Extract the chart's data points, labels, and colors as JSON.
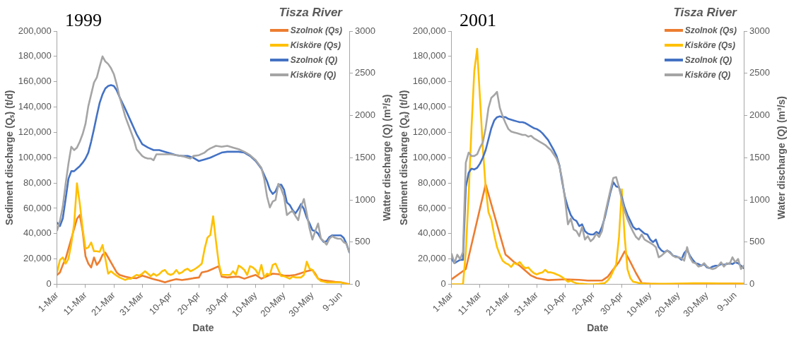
{
  "chart_data": [
    {
      "type": "line",
      "title": "1999",
      "legend_title": "Tisza River",
      "xlabel": "Date",
      "ylabel": "Sediment discharge (Qₛ) (t/d)",
      "y2label": "Watter discharge (Q) (m³/s)",
      "legend": "top right",
      "grid": false,
      "xlim": [
        "--03-01",
        "--06-12"
      ],
      "xticks": [
        {
          "value": "--03-01",
          "label": "1-Mar"
        },
        {
          "value": "--03-11",
          "label": "11-Mar"
        },
        {
          "value": "--03-21",
          "label": "21-Mar"
        },
        {
          "value": "--03-31",
          "label": "31-Mar"
        },
        {
          "value": "--04-10",
          "label": "10-Apr"
        },
        {
          "value": "--04-20",
          "label": "20-Apr"
        },
        {
          "value": "--04-30",
          "label": "30-Apr"
        },
        {
          "value": "--05-10",
          "label": "10-May"
        },
        {
          "value": "--05-20",
          "label": "20-May"
        },
        {
          "value": "--05-30",
          "label": "30-May"
        },
        {
          "value": "--06-09",
          "label": "9-Jun"
        }
      ],
      "ylim": [
        0,
        200000
      ],
      "yticks": [
        0,
        {
          "value": 20000,
          "label": "20,000"
        },
        {
          "value": 40000,
          "label": "40,000"
        },
        {
          "value": 60000,
          "label": "60,000"
        },
        {
          "value": 80000,
          "label": "80,000"
        },
        {
          "value": 100000,
          "label": "100,000"
        },
        {
          "value": 120000,
          "label": "120,000"
        },
        {
          "value": 140000,
          "label": "140,000"
        },
        {
          "value": 160000,
          "label": "160,000"
        },
        {
          "value": 180000,
          "label": "180,000"
        },
        {
          "value": 200000,
          "label": "200,000"
        }
      ],
      "y2lim": [
        0,
        3000
      ],
      "y2ticks": [
        0,
        500,
        1000,
        1500,
        2000,
        2500,
        3000
      ],
      "x": [
        "--03-01",
        "--03-02",
        "--03-03",
        "--03-04",
        "--03-05",
        "--03-06",
        "--03-07",
        "--03-08",
        "--03-09",
        "--03-10",
        "--03-11",
        "--03-12",
        "--03-13",
        "--03-14",
        "--03-15",
        "--03-16",
        "--03-17",
        "--03-18",
        "--03-19",
        "--03-20",
        "--03-21",
        "--03-22",
        "--03-23",
        "--03-24",
        "--03-25",
        "--03-26",
        "--03-27",
        "--03-28",
        "--03-29",
        "--03-30",
        "--03-31",
        "--04-01",
        "--04-02",
        "--04-03",
        "--04-04",
        "--04-05",
        "--04-06",
        "--04-07",
        "--04-08",
        "--04-09",
        "--04-10",
        "--04-11",
        "--04-12",
        "--04-13",
        "--04-14",
        "--04-15",
        "--04-16",
        "--04-17",
        "--04-18",
        "--04-19",
        "--04-20",
        "--04-21",
        "--04-22",
        "--04-23",
        "--04-24",
        "--04-25",
        "--04-26",
        "--04-27",
        "--04-28",
        "--04-29",
        "--04-30",
        "--05-01",
        "--05-02",
        "--05-03",
        "--05-04",
        "--05-05",
        "--05-06",
        "--05-07",
        "--05-08",
        "--05-09",
        "--05-10",
        "--05-11",
        "--05-12",
        "--05-13",
        "--05-14",
        "--05-15",
        "--05-16",
        "--05-17",
        "--05-18",
        "--05-19",
        "--05-20",
        "--05-21",
        "--05-22",
        "--05-23",
        "--05-24",
        "--05-25",
        "--05-26",
        "--05-27",
        "--05-28",
        "--05-29",
        "--05-30",
        "--05-31",
        "--06-01",
        "--06-02",
        "--06-03",
        "--06-04",
        "--06-05",
        "--06-06",
        "--06-07",
        "--06-08",
        "--06-09",
        "--06-10",
        "--06-11",
        "--06-12"
      ],
      "series": [
        {
          "name": "Szolnok (Qs)",
          "color": "#ed7d31",
          "x": [
            "--03-01",
            "--03-02",
            "--03-03",
            "--03-04",
            "--03-05",
            "--03-06",
            "--03-07",
            "--03-08",
            "--03-09",
            "--03-10",
            "--03-11",
            "--03-12",
            "--03-13",
            "--03-14",
            "--03-15",
            "--03-16",
            "--03-17",
            "--03-18",
            "--03-19",
            "--03-20",
            "--03-21",
            "--03-22",
            "--03-23",
            "--03-25",
            "--03-27",
            "--03-29",
            "--03-31",
            "--04-02",
            "--04-04",
            "--04-06",
            "--04-08",
            "--04-10",
            "--04-12",
            "--04-14",
            "--04-16",
            "--04-18",
            "--04-20",
            "--04-21",
            "--04-23",
            "--04-25",
            "--04-27",
            "--04-28",
            "--04-30",
            "--05-02",
            "--05-04",
            "--05-06",
            "--05-08",
            "--05-10",
            "--05-12",
            "--05-14",
            "--05-16",
            "--05-18",
            "--05-20",
            "--05-22",
            "--05-24",
            "--05-26",
            "--05-28",
            "--05-30",
            "--05-31",
            "--06-01",
            "--06-03",
            "--06-05",
            "--06-07",
            "--06-09",
            "--06-11",
            "--06-12"
          ],
          "values": [
            7400,
            9400,
            15300,
            20200,
            28100,
            36000,
            43800,
            51700,
            54700,
            41900,
            22200,
            16300,
            13300,
            21200,
            15300,
            18200,
            23200,
            25100,
            21200,
            17200,
            13300,
            9400,
            7400,
            6000,
            5000,
            4800,
            6800,
            5400,
            4000,
            2900,
            1500,
            2900,
            4000,
            3400,
            4000,
            4800,
            5400,
            9400,
            10300,
            12300,
            14300,
            6000,
            5400,
            5800,
            6000,
            4400,
            6000,
            7400,
            4400,
            6400,
            8400,
            8000,
            6800,
            6800,
            7400,
            8800,
            10300,
            11300,
            8400,
            4400,
            3000,
            2500,
            1900,
            1500,
            500,
            100
          ]
        },
        {
          "name": "Kisköre (Qs)",
          "color": "#ffc000",
          "values": [
            9400,
            19200,
            21200,
            16300,
            20200,
            32000,
            47800,
            79700,
            63500,
            43800,
            28100,
            29100,
            33000,
            26100,
            26100,
            25700,
            31000,
            20200,
            8400,
            10300,
            8400,
            6800,
            5400,
            4400,
            3400,
            4400,
            4400,
            6000,
            7400,
            6800,
            8400,
            10300,
            8400,
            6400,
            8400,
            6800,
            8000,
            10300,
            11300,
            8400,
            7400,
            8400,
            11300,
            8400,
            9400,
            11300,
            12300,
            10300,
            11300,
            12700,
            14300,
            16300,
            28100,
            36900,
            38900,
            53700,
            34000,
            16300,
            7400,
            7400,
            7400,
            7400,
            10300,
            7400,
            14700,
            13300,
            11300,
            7400,
            14300,
            13300,
            11300,
            7400,
            15300,
            5400,
            8400,
            7400,
            15300,
            16300,
            11300,
            6400,
            6400,
            5400,
            4400,
            6000,
            5400,
            5400,
            5400,
            7400,
            17800,
            12300,
            11300,
            7400,
            4400,
            2500,
            2100,
            1500,
            1500,
            1500,
            1500,
            1500,
            1500,
            900,
            100,
            100
          ]
        },
        {
          "name": "Szolnok (Q)",
          "color": "#4472c4",
          "axis": "y2",
          "x": [
            "--03-01",
            "--03-02",
            "--03-03",
            "--03-04",
            "--03-05",
            "--03-06",
            "--03-07",
            "--03-08",
            "--03-09",
            "--03-10",
            "--03-11",
            "--03-12",
            "--03-13",
            "--03-14",
            "--03-15",
            "--03-16",
            "--03-17",
            "--03-18",
            "--03-19",
            "--03-20",
            "--03-21",
            "--03-22",
            "--03-23",
            "--03-25",
            "--03-27",
            "--03-29",
            "--03-31",
            "--04-02",
            "--04-04",
            "--04-06",
            "--04-08",
            "--04-10",
            "--04-12",
            "--04-14",
            "--04-16",
            "--04-18",
            "--04-20",
            "--04-22",
            "--04-24",
            "--04-26",
            "--04-28",
            "--04-30",
            "--05-02",
            "--05-04",
            "--05-06",
            "--05-08",
            "--05-10",
            "--05-12",
            "--05-14",
            "--05-15",
            "--05-16",
            "--05-17",
            "--05-18",
            "--05-19",
            "--05-20",
            "--05-21",
            "--05-22",
            "--05-23",
            "--05-24",
            "--05-25",
            "--05-26",
            "--05-27",
            "--05-28",
            "--05-29",
            "--05-30",
            "--05-31",
            "--06-01",
            "--06-02",
            "--06-03",
            "--06-04",
            "--06-05",
            "--06-06",
            "--06-07",
            "--06-08",
            "--06-09",
            "--06-10",
            "--06-11",
            "--06-12"
          ],
          "values": [
            730,
            690,
            780,
            1010,
            1250,
            1340,
            1340,
            1370,
            1400,
            1440,
            1490,
            1560,
            1690,
            1840,
            2000,
            2150,
            2250,
            2320,
            2350,
            2360,
            2350,
            2300,
            2220,
            2080,
            1930,
            1780,
            1660,
            1620,
            1590,
            1590,
            1570,
            1550,
            1530,
            1520,
            1520,
            1500,
            1460,
            1480,
            1500,
            1530,
            1560,
            1570,
            1570,
            1570,
            1560,
            1520,
            1460,
            1370,
            1220,
            1120,
            1070,
            1100,
            1180,
            1180,
            1120,
            970,
            940,
            880,
            840,
            890,
            950,
            890,
            790,
            720,
            640,
            630,
            600,
            540,
            500,
            510,
            560,
            580,
            580,
            580,
            580,
            550,
            480,
            380
          ]
        },
        {
          "name": "Kisköre (Q)",
          "color": "#a5a5a5",
          "axis": "y2",
          "x": [
            "--03-01",
            "--03-02",
            "--03-03",
            "--03-04",
            "--03-05",
            "--03-06",
            "--03-07",
            "--03-08",
            "--03-09",
            "--03-10",
            "--03-11",
            "--03-12",
            "--03-13",
            "--03-14",
            "--03-15",
            "--03-16",
            "--03-17",
            "--03-18",
            "--03-19",
            "--03-20",
            "--03-21",
            "--03-22",
            "--03-23",
            "--03-24",
            "--03-25",
            "--03-26",
            "--03-27",
            "--03-28",
            "--03-29",
            "--03-30",
            "--03-31",
            "--04-01",
            "--04-02",
            "--04-03",
            "--04-04",
            "--04-05",
            "--04-06",
            "--04-08",
            "--04-10",
            "--04-12",
            "--04-14",
            "--04-16",
            "--04-17",
            "--04-18",
            "--04-20",
            "--04-22",
            "--04-23",
            "--04-24",
            "--04-26",
            "--04-28",
            "--04-30",
            "--05-02",
            "--05-04",
            "--05-06",
            "--05-08",
            "--05-10",
            "--05-12",
            "--05-13",
            "--05-14",
            "--05-15",
            "--05-16",
            "--05-17",
            "--05-18",
            "--05-19",
            "--05-20",
            "--05-21",
            "--05-22",
            "--05-23",
            "--05-24",
            "--05-25",
            "--05-26",
            "--05-27",
            "--05-28",
            "--05-29",
            "--05-30",
            "--05-31",
            "--06-01",
            "--06-02",
            "--06-03",
            "--06-04",
            "--06-05",
            "--06-06",
            "--06-07",
            "--06-08",
            "--06-09",
            "--06-10",
            "--06-11",
            "--06-12"
          ],
          "values": [
            640,
            750,
            920,
            1190,
            1430,
            1630,
            1590,
            1620,
            1690,
            1780,
            1900,
            2110,
            2250,
            2390,
            2450,
            2580,
            2700,
            2640,
            2610,
            2560,
            2490,
            2370,
            2220,
            2110,
            1990,
            1900,
            1810,
            1720,
            1600,
            1560,
            1520,
            1500,
            1490,
            1490,
            1470,
            1540,
            1540,
            1540,
            1540,
            1530,
            1520,
            1500,
            1490,
            1520,
            1530,
            1560,
            1590,
            1610,
            1640,
            1630,
            1640,
            1620,
            1600,
            1570,
            1530,
            1470,
            1380,
            1250,
            1040,
            910,
            980,
            1000,
            1190,
            1130,
            1040,
            820,
            850,
            870,
            810,
            760,
            920,
            1010,
            840,
            660,
            530,
            630,
            720,
            540,
            510,
            470,
            540,
            570,
            550,
            540,
            540,
            500,
            480,
            380
          ]
        }
      ]
    },
    {
      "type": "line",
      "title": "2001",
      "legend_title": "Tisza River",
      "xlabel": "Date",
      "ylabel": "Sediment discharge (Qₛ) (t/d)",
      "y2label": "Water discharge (Q) (m³/s)",
      "legend": "top right",
      "grid": false,
      "xlim": [
        "--03-01",
        "--06-12"
      ],
      "xticks": [
        {
          "value": "--03-01",
          "label": "1-Mar"
        },
        {
          "value": "--03-11",
          "label": "11-Mar"
        },
        {
          "value": "--03-21",
          "label": "21-Mar"
        },
        {
          "value": "--03-31",
          "label": "31-Mar"
        },
        {
          "value": "--04-10",
          "label": "10-Apr"
        },
        {
          "value": "--04-20",
          "label": "20-Apr"
        },
        {
          "value": "--04-30",
          "label": "30-Apr"
        },
        {
          "value": "--05-10",
          "label": "10-May"
        },
        {
          "value": "--05-20",
          "label": "20-May"
        },
        {
          "value": "--05-30",
          "label": "30-May"
        },
        {
          "value": "--06-09",
          "label": "9-Jun"
        }
      ],
      "ylim": [
        0,
        200000
      ],
      "yticks": [
        0,
        {
          "value": 20000,
          "label": "20,000"
        },
        {
          "value": 40000,
          "label": "40,000"
        },
        {
          "value": 60000,
          "label": "60,000"
        },
        {
          "value": 80000,
          "label": "80,000"
        },
        {
          "value": 100000,
          "label": "100,000"
        },
        {
          "value": 120000,
          "label": "120,000"
        },
        {
          "value": 140000,
          "label": "140,000"
        },
        {
          "value": 160000,
          "label": "160,000"
        },
        {
          "value": 180000,
          "label": "180,000"
        },
        {
          "value": 200000,
          "label": "200,000"
        }
      ],
      "y2lim": [
        0,
        3000
      ],
      "y2ticks": [
        0,
        500,
        1000,
        1500,
        2000,
        2500,
        3000
      ],
      "x": [
        "--03-01",
        "--03-02",
        "--03-03",
        "--03-04",
        "--03-05",
        "--03-06",
        "--03-07",
        "--03-08",
        "--03-09",
        "--03-10",
        "--03-11",
        "--03-12",
        "--03-13",
        "--03-14",
        "--03-15",
        "--03-16",
        "--03-17",
        "--03-18",
        "--03-19",
        "--03-20",
        "--03-21",
        "--03-22",
        "--03-23",
        "--03-24",
        "--03-25",
        "--03-26",
        "--03-27",
        "--03-28",
        "--03-29",
        "--03-30",
        "--03-31",
        "--04-01",
        "--04-02",
        "--04-03",
        "--04-04",
        "--04-05",
        "--04-06",
        "--04-07",
        "--04-08",
        "--04-09",
        "--04-10",
        "--04-11",
        "--04-12",
        "--04-13",
        "--04-14",
        "--04-15",
        "--04-16",
        "--04-17",
        "--04-18",
        "--04-19",
        "--04-20",
        "--04-21",
        "--04-22",
        "--04-23",
        "--04-24",
        "--04-25",
        "--04-26",
        "--04-27",
        "--04-28",
        "--04-29",
        "--04-30",
        "--05-01",
        "--05-02",
        "--05-03",
        "--05-04",
        "--05-05",
        "--05-06",
        "--05-07",
        "--05-08",
        "--05-09",
        "--05-10",
        "--05-11",
        "--05-12",
        "--05-13",
        "--05-14",
        "--05-15",
        "--05-16",
        "--05-17",
        "--05-18",
        "--05-19",
        "--05-20",
        "--05-21",
        "--05-22",
        "--05-23",
        "--05-24",
        "--05-25",
        "--05-26",
        "--05-27",
        "--05-28",
        "--05-29",
        "--05-30",
        "--05-31",
        "--06-01",
        "--06-02",
        "--06-03",
        "--06-04",
        "--06-05",
        "--06-06",
        "--06-07",
        "--06-08",
        "--06-09",
        "--06-10",
        "--06-11",
        "--06-12"
      ],
      "series": [
        {
          "name": "Szolnok (Qs)",
          "color": "#ed7d31",
          "x": [
            "--03-01",
            "--03-06",
            "--03-13",
            "--03-20",
            "--03-21",
            "--03-23",
            "--03-25",
            "--03-27",
            "--03-29",
            "--03-31",
            "--04-04",
            "--04-10",
            "--04-15",
            "--04-18",
            "--04-23",
            "--04-25",
            "--04-27",
            "--04-29",
            "--05-01",
            "--05-03",
            "--05-05",
            "--05-07",
            "--05-10",
            "--05-15",
            "--05-20",
            "--05-30",
            "--06-09",
            "--06-12"
          ],
          "values": [
            4000,
            12000,
            79000,
            23500,
            21600,
            17600,
            14700,
            10800,
            6900,
            4900,
            3300,
            3900,
            3500,
            2900,
            2900,
            5900,
            11800,
            17600,
            26000,
            17600,
            8800,
            1000,
            400,
            0,
            200,
            400,
            600,
            400
          ]
        },
        {
          "name": "Kisköre (Qs)",
          "color": "#ffc000",
          "x": [
            "--03-01",
            "--03-05",
            "--03-06",
            "--03-07",
            "--03-08",
            "--03-09",
            "--03-10",
            "--03-11",
            "--03-12",
            "--03-13",
            "--03-14",
            "--03-15",
            "--03-16",
            "--03-17",
            "--03-18",
            "--03-19",
            "--03-20",
            "--03-21",
            "--03-22",
            "--03-23",
            "--03-24",
            "--03-25",
            "--03-26",
            "--03-27",
            "--03-28",
            "--03-29",
            "--03-30",
            "--03-31",
            "--04-01",
            "--04-02",
            "--04-03",
            "--04-04",
            "--04-05",
            "--04-06",
            "--04-07",
            "--04-08",
            "--04-09",
            "--04-10",
            "--04-11",
            "--04-12",
            "--04-13",
            "--04-14",
            "--04-15",
            "--04-16",
            "--04-18",
            "--04-20",
            "--04-22",
            "--04-24",
            "--04-25",
            "--04-26",
            "--04-27",
            "--04-28",
            "--04-29",
            "--04-30",
            "--05-01",
            "--05-02",
            "--05-03",
            "--05-04",
            "--05-05",
            "--05-06",
            "--05-08",
            "--05-10",
            "--05-15",
            "--05-20",
            "--05-25",
            "--05-30",
            "--06-04",
            "--06-09",
            "--06-12"
          ],
          "values": [
            0,
            0,
            25500,
            70200,
            123200,
            168600,
            186000,
            147000,
            107900,
            76500,
            56900,
            51000,
            39200,
            29400,
            23500,
            18600,
            16700,
            15700,
            13700,
            16700,
            15700,
            17600,
            14700,
            12700,
            13300,
            10800,
            8800,
            7800,
            8800,
            9400,
            11400,
            9400,
            9400,
            8800,
            7800,
            6900,
            5500,
            3900,
            2000,
            2900,
            1600,
            800,
            400,
            400,
            0,
            0,
            400,
            1000,
            2900,
            5900,
            10800,
            15700,
            37300,
            75000,
            37300,
            11800,
            4900,
            2000,
            1600,
            1000,
            600,
            400,
            400,
            600,
            800,
            800,
            600,
            600,
            400
          ]
        },
        {
          "name": "Szolnok (Q)",
          "color": "#4472c4",
          "axis": "y2",
          "values": [
            300,
            250,
            270,
            290,
            290,
            1150,
            1320,
            1370,
            1360,
            1380,
            1430,
            1500,
            1590,
            1720,
            1850,
            1940,
            1980,
            1990,
            1980,
            1980,
            1960,
            1950,
            1940,
            1930,
            1920,
            1920,
            1910,
            1890,
            1870,
            1850,
            1840,
            1820,
            1790,
            1750,
            1710,
            1650,
            1590,
            1520,
            1410,
            1210,
            1030,
            910,
            820,
            770,
            750,
            690,
            710,
            630,
            600,
            590,
            590,
            620,
            600,
            680,
            790,
            940,
            1090,
            1210,
            1160,
            1150,
            1030,
            910,
            820,
            750,
            680,
            650,
            660,
            630,
            600,
            590,
            530,
            500,
            530,
            440,
            400,
            380,
            400,
            380,
            340,
            330,
            320,
            290,
            370,
            410,
            340,
            290,
            250,
            240,
            220,
            240,
            200,
            190,
            210,
            220,
            220,
            240,
            230,
            240,
            250,
            240,
            260,
            250,
            220,
            190
          ]
        },
        {
          "name": "Kisköre (Q)",
          "color": "#a5a5a5",
          "axis": "y2",
          "values": [
            360,
            250,
            350,
            300,
            380,
            1440,
            1560,
            1520,
            1520,
            1540,
            1620,
            1680,
            1850,
            2090,
            2210,
            2240,
            2280,
            2090,
            1990,
            1910,
            1840,
            1810,
            1800,
            1790,
            1780,
            1770,
            1770,
            1750,
            1760,
            1730,
            1710,
            1690,
            1670,
            1650,
            1620,
            1590,
            1540,
            1490,
            1400,
            1240,
            1000,
            710,
            780,
            650,
            630,
            570,
            680,
            530,
            570,
            510,
            540,
            600,
            560,
            630,
            820,
            970,
            1120,
            1260,
            1270,
            1150,
            1000,
            870,
            770,
            690,
            620,
            560,
            530,
            590,
            530,
            510,
            490,
            470,
            440,
            320,
            340,
            370,
            400,
            370,
            340,
            320,
            320,
            310,
            280,
            440,
            320,
            260,
            250,
            210,
            220,
            250,
            210,
            190,
            180,
            190,
            220,
            260,
            210,
            250,
            240,
            320,
            260,
            300,
            180,
            220
          ]
        }
      ]
    }
  ]
}
